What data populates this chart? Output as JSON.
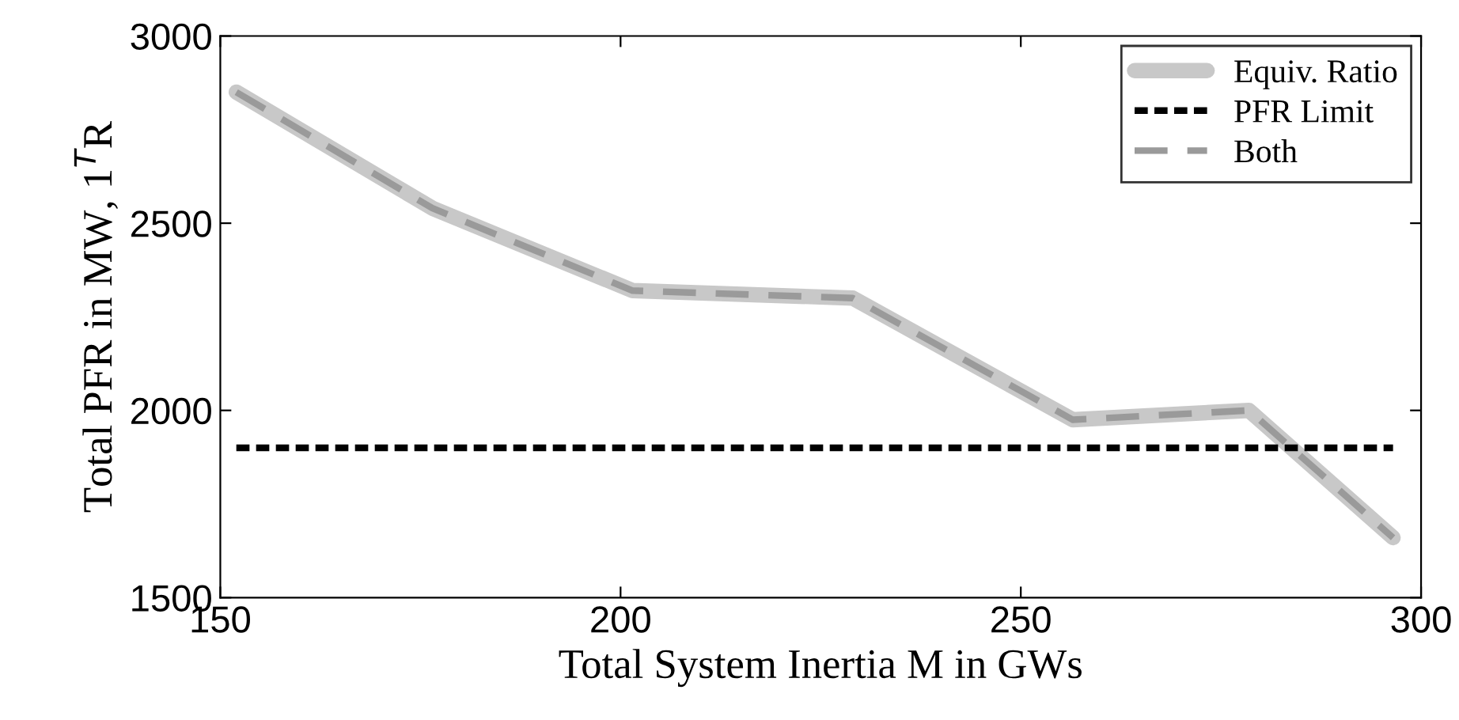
{
  "chart_data": {
    "type": "line",
    "xlabel": "Total System Inertia M in GWs",
    "ylabel": "Total PFR in MW, 1$^{T}$R",
    "xlim": [
      150,
      300
    ],
    "xticks": [
      150,
      200,
      250,
      300
    ],
    "ylim": [
      1500,
      3000
    ],
    "yticks": [
      1500,
      2000,
      2500,
      3000
    ],
    "grid": false,
    "legend": "top right",
    "marker": "none",
    "series": [
      {
        "name": "Equiv. Ratio",
        "color": "#c8c8c8",
        "line_style": "solid",
        "x": [
          152,
          176.5,
          201.5,
          229,
          256.5,
          278.5,
          296.5
        ],
        "values": [
          2850,
          2540,
          2320,
          2300,
          1975,
          2000,
          1660
        ]
      },
      {
        "name": "PFR Limit",
        "color": "#000000",
        "line_style": "dotted",
        "x": [
          152,
          296.5
        ],
        "values": [
          1900,
          1900
        ]
      },
      {
        "name": "Both",
        "color": "#9a9a9a",
        "line_style": "dashed",
        "x": [
          152,
          176.5,
          201.5,
          229,
          256.5,
          278.5,
          296.5
        ],
        "values": [
          2850,
          2540,
          2320,
          2300,
          1975,
          2000,
          1660
        ]
      }
    ]
  }
}
